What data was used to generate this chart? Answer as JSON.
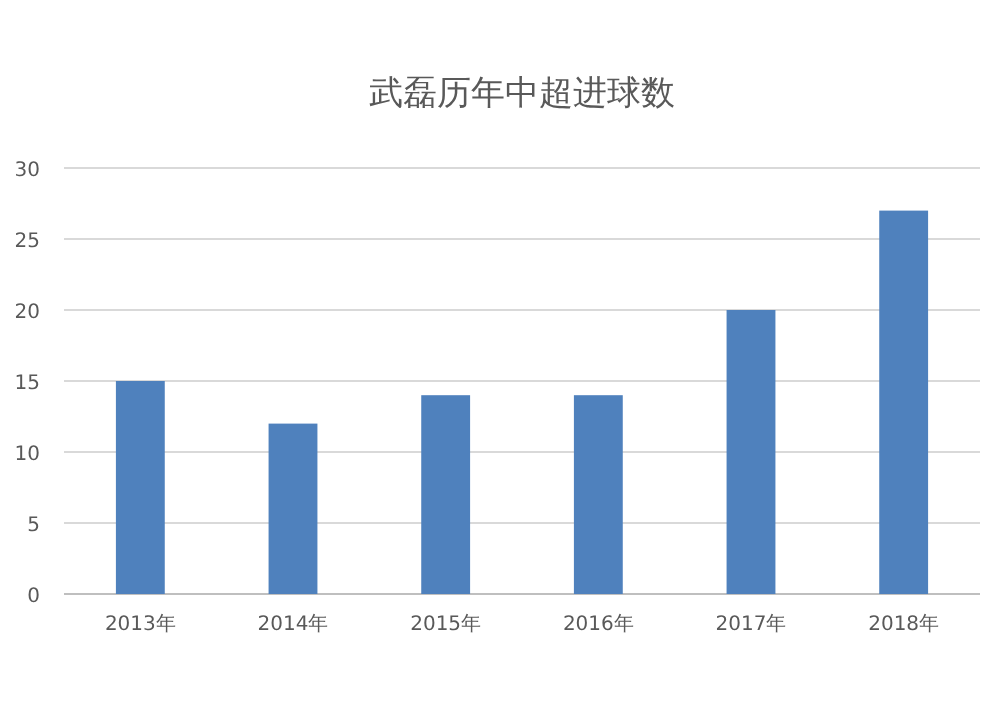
{
  "chart_data": {
    "type": "bar",
    "title": "武磊历年中超进球数",
    "categories": [
      "2013年",
      "2014年",
      "2015年",
      "2016年",
      "2017年",
      "2018年"
    ],
    "values": [
      15,
      12,
      14,
      14,
      20,
      27
    ],
    "color": "#4f81bd",
    "ylim": [
      0,
      30
    ],
    "yticks": [
      0,
      5,
      10,
      15,
      20,
      25,
      30
    ],
    "grid": "y"
  }
}
